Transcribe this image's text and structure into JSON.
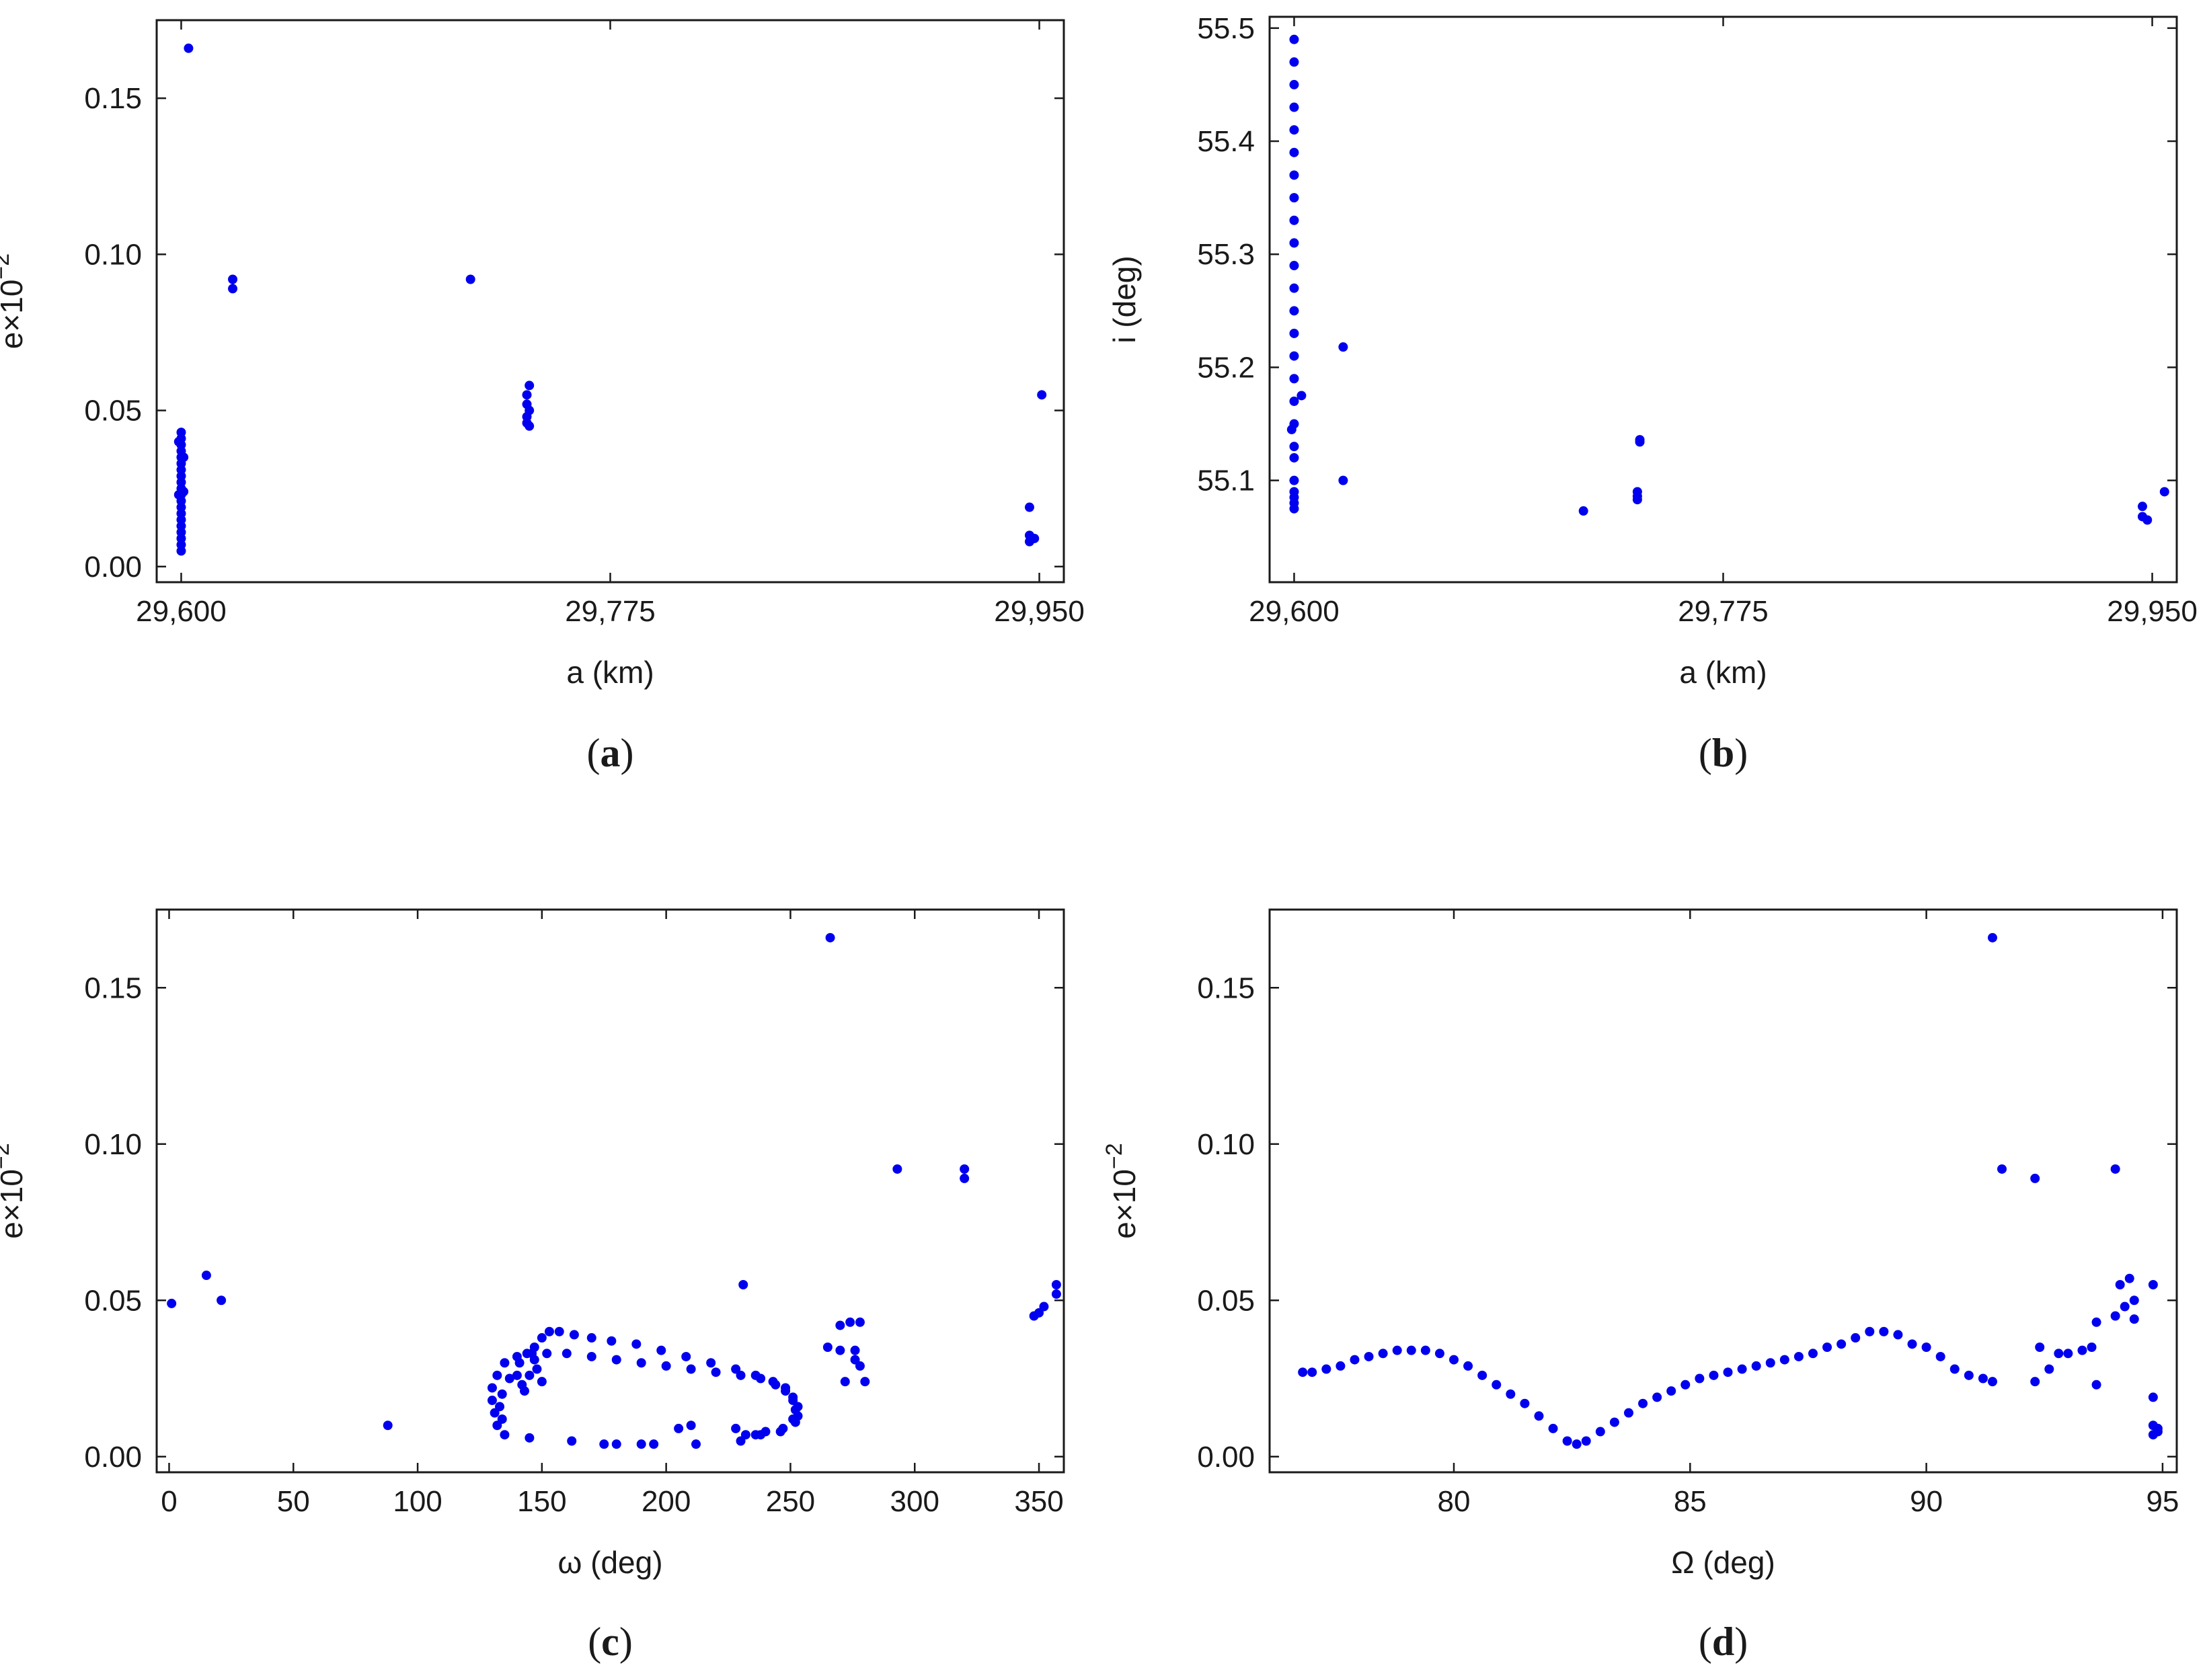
{
  "chart_data": [
    {
      "id": "a",
      "type": "scatter",
      "caption_letter": "a",
      "xlabel": "a (km)",
      "ylabel_base": "e×10",
      "ylabel_sup": "−2",
      "xlim": [
        29590,
        29960
      ],
      "ylim": [
        -0.005,
        0.175
      ],
      "xticks": [
        {
          "v": 29600,
          "label": "29,600"
        },
        {
          "v": 29775,
          "label": "29,775"
        },
        {
          "v": 29950,
          "label": "29,950"
        }
      ],
      "yticks": [
        {
          "v": 0.0,
          "label": "0.00"
        },
        {
          "v": 0.05,
          "label": "0.05"
        },
        {
          "v": 0.1,
          "label": "0.10"
        },
        {
          "v": 0.15,
          "label": "0.15"
        }
      ],
      "points": [
        [
          29603,
          0.166
        ],
        [
          29621,
          0.092
        ],
        [
          29621,
          0.089
        ],
        [
          29718,
          0.092
        ],
        [
          29742,
          0.058
        ],
        [
          29741,
          0.055
        ],
        [
          29741,
          0.052
        ],
        [
          29742,
          0.05
        ],
        [
          29741,
          0.048
        ],
        [
          29741,
          0.046
        ],
        [
          29742,
          0.045
        ],
        [
          29951,
          0.055
        ],
        [
          29946,
          0.019
        ],
        [
          29946,
          0.01
        ],
        [
          29947,
          0.009
        ],
        [
          29946,
          0.008
        ],
        [
          29948,
          0.009
        ],
        [
          29600,
          0.043
        ],
        [
          29600,
          0.041
        ],
        [
          29600,
          0.039
        ],
        [
          29600,
          0.037
        ],
        [
          29600,
          0.035
        ],
        [
          29600,
          0.033
        ],
        [
          29600,
          0.031
        ],
        [
          29600,
          0.029
        ],
        [
          29600,
          0.027
        ],
        [
          29600,
          0.025
        ],
        [
          29600,
          0.023
        ],
        [
          29600,
          0.021
        ],
        [
          29600,
          0.019
        ],
        [
          29600,
          0.017
        ],
        [
          29600,
          0.015
        ],
        [
          29600,
          0.013
        ],
        [
          29600,
          0.011
        ],
        [
          29600,
          0.009
        ],
        [
          29600,
          0.007
        ],
        [
          29600,
          0.005
        ],
        [
          29599,
          0.023
        ],
        [
          29601,
          0.035
        ],
        [
          29601,
          0.024
        ],
        [
          29599,
          0.04
        ]
      ]
    },
    {
      "id": "b",
      "type": "scatter",
      "caption_letter": "b",
      "xlabel": "a (km)",
      "ylabel": "i (deg)",
      "xlim": [
        29590,
        29960
      ],
      "ylim": [
        55.01,
        55.51
      ],
      "xticks": [
        {
          "v": 29600,
          "label": "29,600"
        },
        {
          "v": 29775,
          "label": "29,775"
        },
        {
          "v": 29950,
          "label": "29,950"
        }
      ],
      "yticks": [
        {
          "v": 55.1,
          "label": "55.1"
        },
        {
          "v": 55.2,
          "label": "55.2"
        },
        {
          "v": 55.3,
          "label": "55.3"
        },
        {
          "v": 55.4,
          "label": "55.4"
        },
        {
          "v": 55.5,
          "label": "55.5"
        }
      ],
      "points": [
        [
          29599,
          55.145
        ],
        [
          29603,
          55.175
        ],
        [
          29620,
          55.218
        ],
        [
          29620,
          55.1
        ],
        [
          29718,
          55.073
        ],
        [
          29741,
          55.136
        ],
        [
          29741,
          55.134
        ],
        [
          29740,
          55.09
        ],
        [
          29740,
          55.086
        ],
        [
          29740,
          55.083
        ],
        [
          29946,
          55.077
        ],
        [
          29946,
          55.068
        ],
        [
          29948,
          55.065
        ],
        [
          29955,
          55.09
        ],
        [
          29600,
          55.49
        ],
        [
          29600,
          55.47
        ],
        [
          29600,
          55.45
        ],
        [
          29600,
          55.43
        ],
        [
          29600,
          55.41
        ],
        [
          29600,
          55.39
        ],
        [
          29600,
          55.37
        ],
        [
          29600,
          55.35
        ],
        [
          29600,
          55.33
        ],
        [
          29600,
          55.31
        ],
        [
          29600,
          55.29
        ],
        [
          29600,
          55.27
        ],
        [
          29600,
          55.25
        ],
        [
          29600,
          55.23
        ],
        [
          29600,
          55.21
        ],
        [
          29600,
          55.19
        ],
        [
          29600,
          55.17
        ],
        [
          29600,
          55.15
        ],
        [
          29600,
          55.13
        ],
        [
          29600,
          55.12
        ],
        [
          29600,
          55.1
        ],
        [
          29600,
          55.09
        ],
        [
          29600,
          55.085
        ],
        [
          29600,
          55.08
        ],
        [
          29600,
          55.075
        ]
      ]
    },
    {
      "id": "c",
      "type": "scatter",
      "caption_letter": "c",
      "xlabel": "ω (deg)",
      "ylabel_base": "e×10",
      "ylabel_sup": "−2",
      "xlim": [
        -5,
        360
      ],
      "ylim": [
        -0.005,
        0.175
      ],
      "xticks": [
        {
          "v": 0,
          "label": "0"
        },
        {
          "v": 50,
          "label": "50"
        },
        {
          "v": 100,
          "label": "100"
        },
        {
          "v": 150,
          "label": "150"
        },
        {
          "v": 200,
          "label": "200"
        },
        {
          "v": 250,
          "label": "250"
        },
        {
          "v": 300,
          "label": "300"
        },
        {
          "v": 350,
          "label": "350"
        }
      ],
      "yticks": [
        {
          "v": 0.0,
          "label": "0.00"
        },
        {
          "v": 0.05,
          "label": "0.05"
        },
        {
          "v": 0.1,
          "label": "0.10"
        },
        {
          "v": 0.15,
          "label": "0.15"
        }
      ],
      "points": [
        [
          1,
          0.049
        ],
        [
          15,
          0.058
        ],
        [
          21,
          0.05
        ],
        [
          88,
          0.01
        ],
        [
          231,
          0.055
        ],
        [
          266,
          0.166
        ],
        [
          293,
          0.092
        ],
        [
          320,
          0.092
        ],
        [
          320,
          0.089
        ],
        [
          265,
          0.035
        ],
        [
          270,
          0.042
        ],
        [
          270,
          0.034
        ],
        [
          272,
          0.024
        ],
        [
          274,
          0.043
        ],
        [
          276,
          0.031
        ],
        [
          278,
          0.043
        ],
        [
          276,
          0.034
        ],
        [
          280,
          0.024
        ],
        [
          278,
          0.029
        ],
        [
          348,
          0.045
        ],
        [
          350,
          0.046
        ],
        [
          352,
          0.048
        ],
        [
          357,
          0.052
        ],
        [
          357,
          0.055
        ],
        [
          140,
          0.026
        ],
        [
          142,
          0.023
        ],
        [
          145,
          0.026
        ],
        [
          150,
          0.024
        ],
        [
          147,
          0.031
        ],
        [
          148,
          0.028
        ],
        [
          143,
          0.021
        ],
        [
          135,
          0.007
        ],
        [
          145,
          0.006
        ],
        [
          162,
          0.005
        ],
        [
          175,
          0.004
        ],
        [
          180,
          0.004
        ],
        [
          190,
          0.004
        ],
        [
          195,
          0.004
        ],
        [
          205,
          0.009
        ],
        [
          210,
          0.01
        ],
        [
          212,
          0.004
        ],
        [
          228,
          0.009
        ],
        [
          230,
          0.005
        ],
        [
          132,
          0.01
        ],
        [
          131,
          0.014
        ],
        [
          130,
          0.018
        ],
        [
          130,
          0.022
        ],
        [
          132,
          0.026
        ],
        [
          135,
          0.03
        ],
        [
          140,
          0.032
        ],
        [
          146,
          0.033
        ],
        [
          152,
          0.033
        ],
        [
          160,
          0.033
        ],
        [
          170,
          0.032
        ],
        [
          180,
          0.031
        ],
        [
          190,
          0.03
        ],
        [
          200,
          0.029
        ],
        [
          210,
          0.028
        ],
        [
          220,
          0.027
        ],
        [
          230,
          0.026
        ],
        [
          238,
          0.025
        ],
        [
          244,
          0.023
        ],
        [
          248,
          0.021
        ],
        [
          251,
          0.018
        ],
        [
          252,
          0.015
        ],
        [
          251,
          0.012
        ],
        [
          247,
          0.009
        ],
        [
          240,
          0.008
        ],
        [
          232,
          0.007
        ],
        [
          134,
          0.012
        ],
        [
          133,
          0.016
        ],
        [
          134,
          0.02
        ],
        [
          137,
          0.025
        ],
        [
          141,
          0.03
        ],
        [
          144,
          0.033
        ],
        [
          147,
          0.035
        ],
        [
          150,
          0.038
        ],
        [
          153,
          0.04
        ],
        [
          157,
          0.04
        ],
        [
          163,
          0.039
        ],
        [
          170,
          0.038
        ],
        [
          178,
          0.037
        ],
        [
          188,
          0.036
        ],
        [
          198,
          0.034
        ],
        [
          208,
          0.032
        ],
        [
          218,
          0.03
        ],
        [
          228,
          0.028
        ],
        [
          236,
          0.026
        ],
        [
          243,
          0.024
        ],
        [
          248,
          0.022
        ],
        [
          251,
          0.019
        ],
        [
          253,
          0.016
        ],
        [
          253,
          0.013
        ],
        [
          252,
          0.011
        ],
        [
          246,
          0.008
        ],
        [
          238,
          0.007
        ],
        [
          236,
          0.007
        ]
      ]
    },
    {
      "id": "d",
      "type": "scatter",
      "caption_letter": "d",
      "xlabel": "Ω (deg)",
      "ylabel_base": "e×10",
      "ylabel_sup": "−2",
      "xlim": [
        76.1,
        95.3
      ],
      "ylim": [
        -0.005,
        0.175
      ],
      "xticks": [
        {
          "v": 80,
          "label": "80"
        },
        {
          "v": 85,
          "label": "85"
        },
        {
          "v": 90,
          "label": "90"
        },
        {
          "v": 95,
          "label": "95"
        }
      ],
      "yticks": [
        {
          "v": 0.0,
          "label": "0.00"
        },
        {
          "v": 0.05,
          "label": "0.05"
        },
        {
          "v": 0.1,
          "label": "0.10"
        },
        {
          "v": 0.15,
          "label": "0.15"
        }
      ],
      "points": [
        [
          76.8,
          0.027
        ],
        [
          77.0,
          0.027
        ],
        [
          77.3,
          0.028
        ],
        [
          77.6,
          0.029
        ],
        [
          77.9,
          0.031
        ],
        [
          78.2,
          0.032
        ],
        [
          78.5,
          0.033
        ],
        [
          78.8,
          0.034
        ],
        [
          79.1,
          0.034
        ],
        [
          79.4,
          0.034
        ],
        [
          79.7,
          0.033
        ],
        [
          80.0,
          0.031
        ],
        [
          80.3,
          0.029
        ],
        [
          80.6,
          0.026
        ],
        [
          80.9,
          0.023
        ],
        [
          81.2,
          0.02
        ],
        [
          81.5,
          0.017
        ],
        [
          81.8,
          0.013
        ],
        [
          82.1,
          0.009
        ],
        [
          82.4,
          0.005
        ],
        [
          82.6,
          0.004
        ],
        [
          82.8,
          0.005
        ],
        [
          83.1,
          0.008
        ],
        [
          83.4,
          0.011
        ],
        [
          83.7,
          0.014
        ],
        [
          84.0,
          0.017
        ],
        [
          84.3,
          0.019
        ],
        [
          84.6,
          0.021
        ],
        [
          84.9,
          0.023
        ],
        [
          85.2,
          0.025
        ],
        [
          85.5,
          0.026
        ],
        [
          85.8,
          0.027
        ],
        [
          86.1,
          0.028
        ],
        [
          86.4,
          0.029
        ],
        [
          86.7,
          0.03
        ],
        [
          87.0,
          0.031
        ],
        [
          87.3,
          0.032
        ],
        [
          87.6,
          0.033
        ],
        [
          87.9,
          0.035
        ],
        [
          88.2,
          0.036
        ],
        [
          88.5,
          0.038
        ],
        [
          88.8,
          0.04
        ],
        [
          89.1,
          0.04
        ],
        [
          89.4,
          0.039
        ],
        [
          89.7,
          0.036
        ],
        [
          90.0,
          0.035
        ],
        [
          90.3,
          0.032
        ],
        [
          90.6,
          0.028
        ],
        [
          90.9,
          0.026
        ],
        [
          91.2,
          0.025
        ],
        [
          91.4,
          0.024
        ],
        [
          91.4,
          0.166
        ],
        [
          91.6,
          0.092
        ],
        [
          92.3,
          0.089
        ],
        [
          94.0,
          0.092
        ],
        [
          92.3,
          0.024
        ],
        [
          92.4,
          0.035
        ],
        [
          92.6,
          0.028
        ],
        [
          92.8,
          0.033
        ],
        [
          93.0,
          0.033
        ],
        [
          93.3,
          0.034
        ],
        [
          93.5,
          0.035
        ],
        [
          93.6,
          0.043
        ],
        [
          93.6,
          0.023
        ],
        [
          94.0,
          0.045
        ],
        [
          94.1,
          0.055
        ],
        [
          94.2,
          0.048
        ],
        [
          94.3,
          0.057
        ],
        [
          94.4,
          0.044
        ],
        [
          94.4,
          0.05
        ],
        [
          94.8,
          0.055
        ],
        [
          94.8,
          0.019
        ],
        [
          94.8,
          0.01
        ],
        [
          94.9,
          0.008
        ],
        [
          94.8,
          0.007
        ],
        [
          94.9,
          0.009
        ]
      ]
    }
  ]
}
